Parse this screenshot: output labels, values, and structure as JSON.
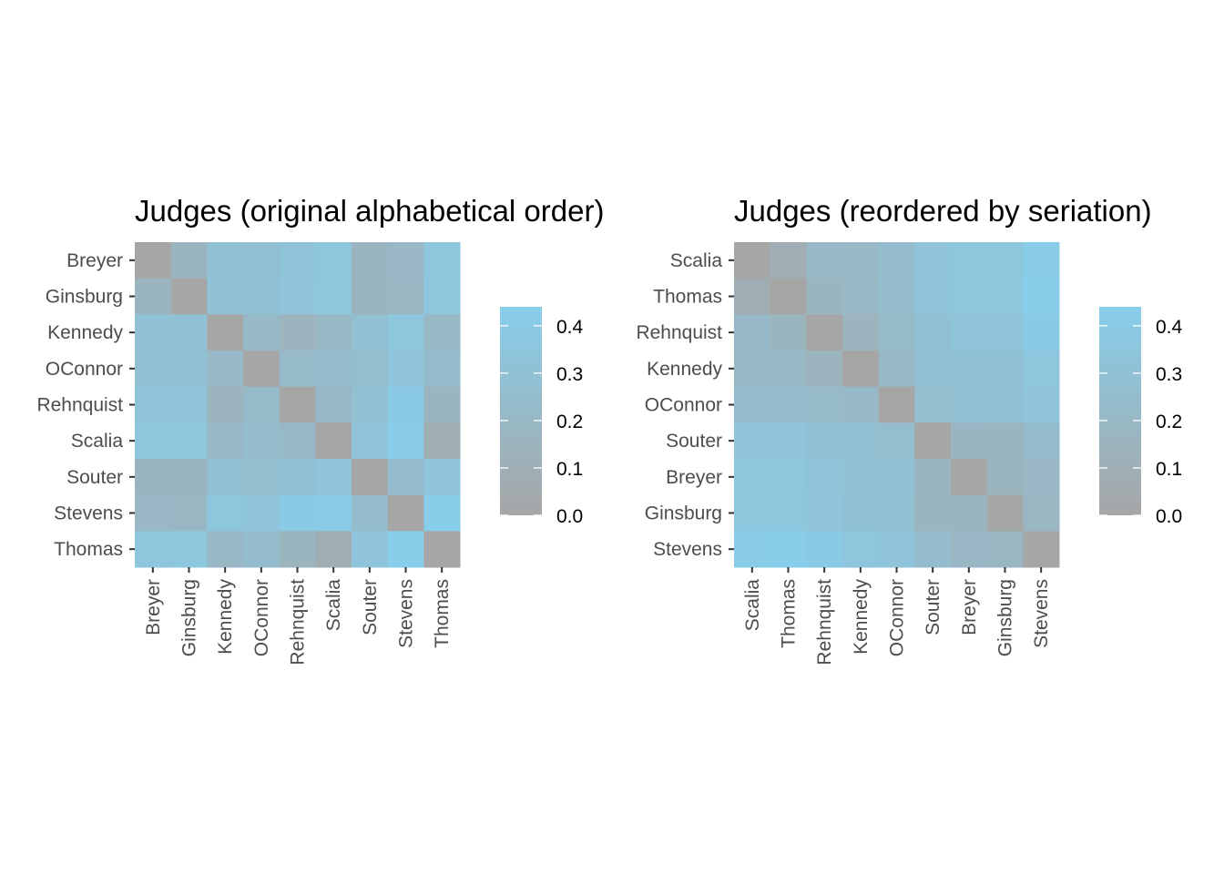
{
  "colors": {
    "low": "#A6A6A6",
    "high": "#87CEEB"
  },
  "chart_data": [
    {
      "type": "heatmap",
      "title": "Judges (original alphabetical order)",
      "xlabel": "",
      "ylabel": "",
      "x": [
        "Breyer",
        "Ginsburg",
        "Kennedy",
        "OConnor",
        "Rehnquist",
        "Scalia",
        "Souter",
        "Stevens",
        "Thomas"
      ],
      "y": [
        "Breyer",
        "Ginsburg",
        "Kennedy",
        "OConnor",
        "Rehnquist",
        "Scalia",
        "Souter",
        "Stevens",
        "Thomas"
      ],
      "values": [
        [
          0.0,
          0.16,
          0.3,
          0.28,
          0.32,
          0.35,
          0.17,
          0.19,
          0.35
        ],
        [
          0.16,
          0.0,
          0.3,
          0.29,
          0.33,
          0.36,
          0.16,
          0.18,
          0.36
        ],
        [
          0.3,
          0.3,
          0.0,
          0.21,
          0.15,
          0.2,
          0.28,
          0.35,
          0.2
        ],
        [
          0.28,
          0.29,
          0.21,
          0.0,
          0.22,
          0.24,
          0.25,
          0.33,
          0.24
        ],
        [
          0.32,
          0.33,
          0.15,
          0.22,
          0.0,
          0.21,
          0.29,
          0.4,
          0.16
        ],
        [
          0.35,
          0.36,
          0.2,
          0.24,
          0.21,
          0.0,
          0.33,
          0.42,
          0.09
        ],
        [
          0.17,
          0.16,
          0.28,
          0.25,
          0.29,
          0.33,
          0.0,
          0.24,
          0.33
        ],
        [
          0.19,
          0.18,
          0.35,
          0.33,
          0.4,
          0.42,
          0.24,
          0.0,
          0.43
        ],
        [
          0.35,
          0.36,
          0.2,
          0.24,
          0.16,
          0.09,
          0.33,
          0.43,
          0.0
        ]
      ],
      "legend": {
        "ticks": [
          0.0,
          0.1,
          0.2,
          0.3,
          0.4
        ],
        "tick_labels": [
          "0.0",
          "0.1",
          "0.2",
          "0.3",
          "0.4"
        ],
        "range": [
          0,
          0.44
        ]
      }
    },
    {
      "type": "heatmap",
      "title": "Judges (reordered by seriation)",
      "xlabel": "",
      "ylabel": "",
      "x": [
        "Scalia",
        "Thomas",
        "Rehnquist",
        "Kennedy",
        "OConnor",
        "Souter",
        "Breyer",
        "Ginsburg",
        "Stevens"
      ],
      "y": [
        "Scalia",
        "Thomas",
        "Rehnquist",
        "Kennedy",
        "OConnor",
        "Souter",
        "Breyer",
        "Ginsburg",
        "Stevens"
      ],
      "values": [
        [
          0.0,
          0.09,
          0.21,
          0.2,
          0.24,
          0.33,
          0.35,
          0.36,
          0.42
        ],
        [
          0.09,
          0.0,
          0.16,
          0.2,
          0.24,
          0.33,
          0.35,
          0.36,
          0.43
        ],
        [
          0.21,
          0.16,
          0.0,
          0.15,
          0.22,
          0.29,
          0.32,
          0.33,
          0.4
        ],
        [
          0.2,
          0.2,
          0.15,
          0.0,
          0.21,
          0.28,
          0.3,
          0.3,
          0.35
        ],
        [
          0.24,
          0.24,
          0.22,
          0.21,
          0.0,
          0.25,
          0.28,
          0.29,
          0.33
        ],
        [
          0.33,
          0.33,
          0.29,
          0.28,
          0.25,
          0.0,
          0.17,
          0.16,
          0.24
        ],
        [
          0.35,
          0.35,
          0.32,
          0.3,
          0.28,
          0.17,
          0.0,
          0.16,
          0.19
        ],
        [
          0.36,
          0.36,
          0.33,
          0.3,
          0.29,
          0.16,
          0.16,
          0.0,
          0.18
        ],
        [
          0.42,
          0.43,
          0.4,
          0.35,
          0.33,
          0.24,
          0.19,
          0.18,
          0.0
        ]
      ],
      "legend": {
        "ticks": [
          0.0,
          0.1,
          0.2,
          0.3,
          0.4
        ],
        "tick_labels": [
          "0.0",
          "0.1",
          "0.2",
          "0.3",
          "0.4"
        ],
        "range": [
          0,
          0.44
        ]
      }
    }
  ]
}
